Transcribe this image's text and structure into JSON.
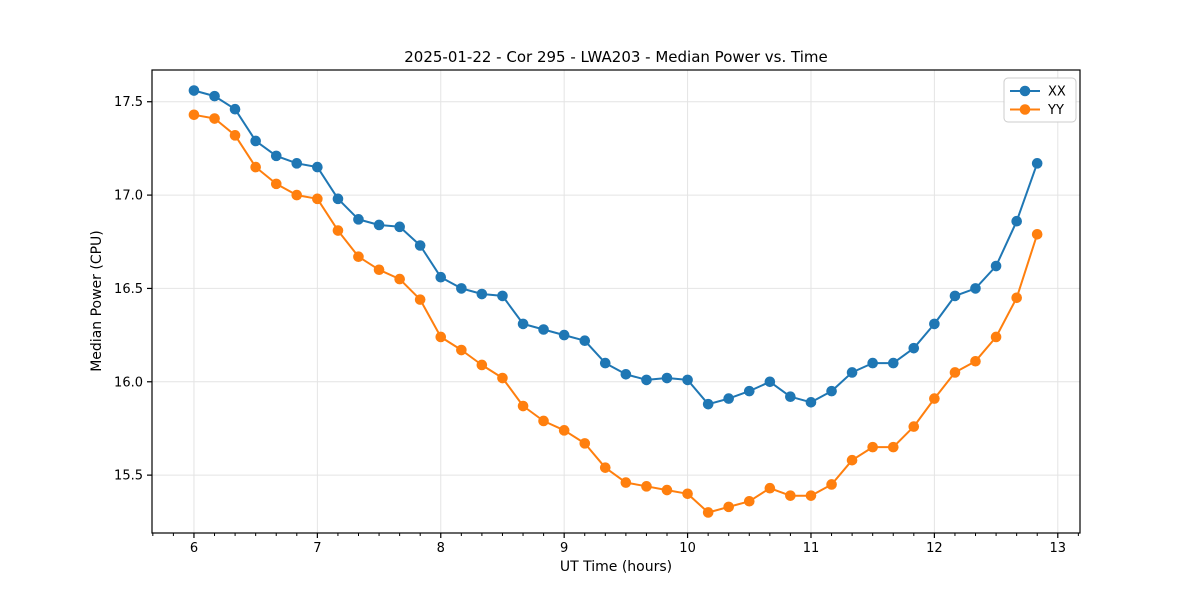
{
  "chart_data": {
    "type": "line",
    "title": "2025-01-22 - Cor 295 - LWA203 - Median Power vs. Time",
    "xlabel": "UT Time (hours)",
    "ylabel": "Median Power (CPU)",
    "xlim": [
      5.66,
      13.18
    ],
    "ylim": [
      15.19,
      17.67
    ],
    "x_ticks": [
      6,
      7,
      8,
      9,
      10,
      11,
      12,
      13
    ],
    "x_tick_labels": [
      "6",
      "7",
      "8",
      "9",
      "10",
      "11",
      "12",
      "13"
    ],
    "x_minor_ticks_per_hour": 6,
    "y_ticks": [
      15.5,
      16.0,
      16.5,
      17.0,
      17.5
    ],
    "y_tick_labels": [
      "15.5",
      "16.0",
      "16.5",
      "17.0",
      "17.5"
    ],
    "grid": true,
    "grid_color": "#e4e4e4",
    "legend_position": "upper right",
    "x": [
      6.0,
      6.167,
      6.333,
      6.5,
      6.667,
      6.833,
      7.0,
      7.167,
      7.333,
      7.5,
      7.667,
      7.833,
      8.0,
      8.167,
      8.333,
      8.5,
      8.667,
      8.833,
      9.0,
      9.167,
      9.333,
      9.5,
      9.667,
      9.833,
      10.0,
      10.167,
      10.333,
      10.5,
      10.667,
      10.833,
      11.0,
      11.167,
      11.333,
      11.5,
      11.667,
      11.833,
      12.0,
      12.167,
      12.333,
      12.5,
      12.667,
      12.833
    ],
    "series": [
      {
        "name": "XX",
        "color": "#1f77b4",
        "values": [
          17.56,
          17.53,
          17.46,
          17.29,
          17.21,
          17.17,
          17.15,
          16.98,
          16.87,
          16.84,
          16.83,
          16.73,
          16.56,
          16.5,
          16.47,
          16.46,
          16.31,
          16.28,
          16.25,
          16.22,
          16.1,
          16.04,
          16.01,
          16.02,
          16.01,
          15.88,
          15.91,
          15.95,
          16.0,
          15.92,
          15.89,
          15.95,
          16.05,
          16.1,
          16.1,
          16.18,
          16.31,
          16.46,
          16.5,
          16.62,
          16.86,
          17.17
        ]
      },
      {
        "name": "YY",
        "color": "#ff7f0e",
        "values": [
          17.43,
          17.41,
          17.32,
          17.15,
          17.06,
          17.0,
          16.98,
          16.81,
          16.67,
          16.6,
          16.55,
          16.44,
          16.24,
          16.17,
          16.09,
          16.02,
          15.87,
          15.79,
          15.74,
          15.67,
          15.54,
          15.46,
          15.44,
          15.42,
          15.4,
          15.3,
          15.33,
          15.36,
          15.43,
          15.39,
          15.39,
          15.45,
          15.58,
          15.65,
          15.65,
          15.76,
          15.91,
          16.05,
          16.11,
          16.24,
          16.45,
          16.79
        ]
      }
    ]
  }
}
